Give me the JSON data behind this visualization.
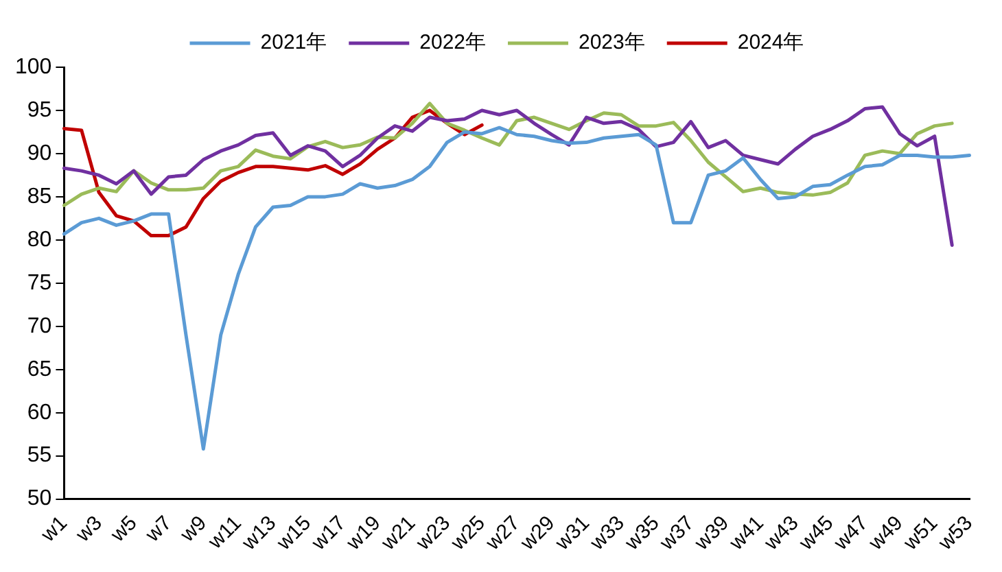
{
  "chart_data": {
    "type": "line",
    "categories": [
      "w1",
      null,
      "w3",
      null,
      "w5",
      null,
      "w7",
      null,
      "w9",
      null,
      "w11",
      null,
      "w13",
      null,
      "w15",
      null,
      "w17",
      null,
      "w19",
      null,
      "w21",
      null,
      "w23",
      null,
      "w25",
      null,
      "w27",
      null,
      "w29",
      null,
      "w31",
      null,
      "w33",
      null,
      "w35",
      null,
      "w37",
      null,
      "w39",
      null,
      "w41",
      null,
      "w43",
      null,
      "w45",
      null,
      "w47",
      null,
      "w49",
      null,
      "w51",
      null,
      "w53"
    ],
    "series": [
      {
        "name": "2021年",
        "color": "#5b9bd5",
        "values": [
          80.7,
          82,
          82.5,
          81.7,
          82.2,
          83,
          83,
          69,
          55.8,
          69,
          76,
          81.5,
          83.8,
          84,
          85,
          85,
          85.3,
          86.5,
          86,
          86.3,
          87,
          88.5,
          91.3,
          92.5,
          92.3,
          93,
          92.2,
          92,
          91.5,
          91.2,
          91.3,
          91.8,
          92,
          92.2,
          91,
          82,
          82,
          87.5,
          88,
          89.5,
          87,
          84.8,
          85,
          86.2,
          86.4,
          87.5,
          88.5,
          88.7,
          89.8,
          89.8,
          89.6,
          89.6,
          89.8
        ]
      },
      {
        "name": "2022年",
        "color": "#7030a0",
        "values": [
          88.3,
          88,
          87.5,
          86.5,
          88,
          85.3,
          87.3,
          87.5,
          89.3,
          90.3,
          91,
          92.1,
          92.4,
          89.8,
          90.9,
          90.3,
          88.5,
          89.8,
          91.8,
          93.2,
          92.6,
          94.2,
          93.8,
          94,
          95,
          94.5,
          95,
          93.5,
          92.2,
          91,
          94.2,
          93.5,
          93.7,
          92.8,
          90.8,
          91.3,
          93.7,
          90.7,
          91.5,
          89.8,
          89.3,
          88.8,
          90.5,
          92,
          92.8,
          93.8,
          95.2,
          95.4,
          92.3,
          90.9,
          92,
          79.4,
          null
        ]
      },
      {
        "name": "2023年",
        "color": "#9bbb59",
        "values": [
          84,
          85.3,
          86,
          85.6,
          88,
          86.6,
          85.8,
          85.8,
          86,
          88,
          88.5,
          90.4,
          89.7,
          89.4,
          90.8,
          91.4,
          90.7,
          91,
          91.9,
          91.8,
          93.5,
          95.8,
          93.5,
          92.7,
          91.8,
          91,
          93.8,
          94.2,
          93.5,
          92.8,
          93.8,
          94.7,
          94.5,
          93.2,
          93.2,
          93.6,
          91.5,
          89,
          87.3,
          85.6,
          86,
          85.5,
          85.3,
          85.2,
          85.5,
          86.6,
          89.8,
          90.3,
          90,
          92.3,
          93.2,
          93.5,
          null
        ]
      },
      {
        "name": "2024年",
        "color": "#c00000",
        "values": [
          92.9,
          92.7,
          85.5,
          82.8,
          82.2,
          80.5,
          80.5,
          81.5,
          84.8,
          86.8,
          87.8,
          88.5,
          88.5,
          88.3,
          88.1,
          88.6,
          87.6,
          88.8,
          90.5,
          91.8,
          94.2,
          95,
          93.5,
          92.2,
          93.3,
          null,
          null,
          null,
          null,
          null,
          null,
          null,
          null,
          null,
          null,
          null,
          null,
          null,
          null,
          null,
          null,
          null,
          null,
          null,
          null,
          null,
          null,
          null,
          null,
          null,
          null,
          null,
          null
        ]
      }
    ],
    "ylim": [
      50,
      100
    ],
    "yticks": [
      50,
      55,
      60,
      65,
      70,
      75,
      80,
      85,
      90,
      95,
      100
    ],
    "grid": false,
    "legend": "top",
    "marker": "none",
    "line_style": "solid"
  }
}
